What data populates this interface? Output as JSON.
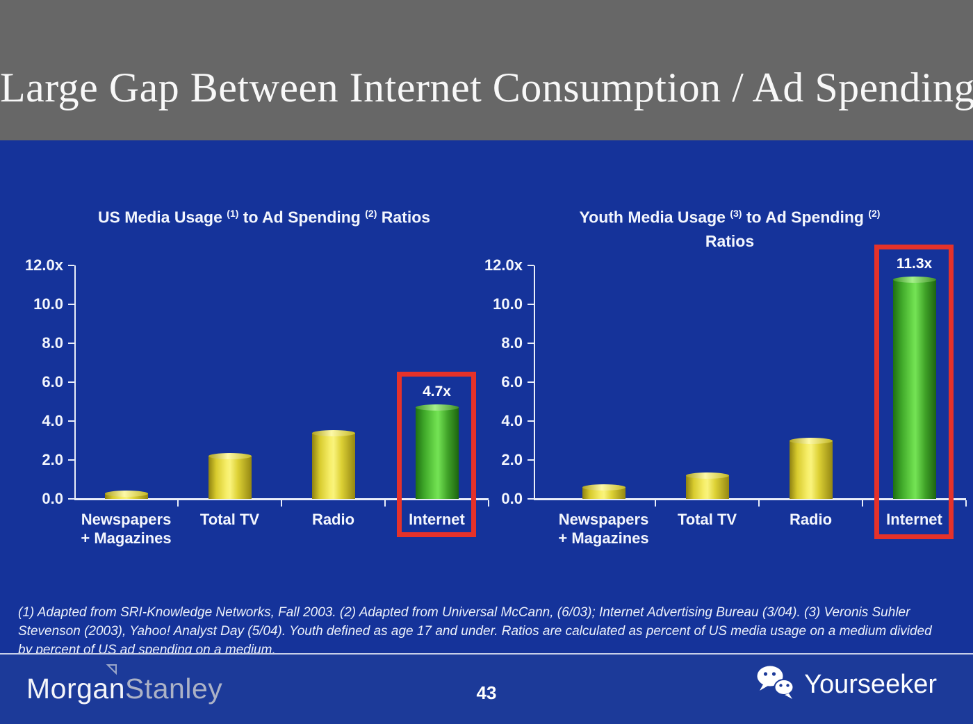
{
  "slide": {
    "title": "Large Gap Between Internet Consumption / Ad Spending",
    "page_number": "43"
  },
  "footnote": {
    "lines": [
      "(1) Adapted from SRI-Knowledge Networks, Fall 2003.  (2) Adapted from Universal McCann, (6/03); Internet Advertising Bureau (3/04). (3) Veronis Suhler",
      "Stevenson (2003), Yahoo! Analyst Day (5/04).  Youth defined as age 17 and under.  Ratios are calculated as percent of US media usage on a medium divided",
      "by percent of US ad spending on a medium."
    ]
  },
  "footer": {
    "brand": {
      "part1": "Morgan",
      "part2": "Stanley",
      "icon": "morgan-stanley-triangle-icon"
    },
    "watermark": {
      "label": "Yourseeker",
      "icon": "wechat-icon"
    }
  },
  "colors": {
    "header_gray": "#676767",
    "slide_blue": "#15339A",
    "footer_blue": "#1C3A99",
    "bar_yellow": "#E8DC3A",
    "bar_green": "#5ACC3C",
    "highlight_red": "#E5322A",
    "axis_white": "#E9EEF9",
    "text_white": "#F3F6FD"
  },
  "chart_data": [
    {
      "type": "bar",
      "title": "US Media Usage (1) to Ad Spending (2) Ratios",
      "title_segments": [
        {
          "text": "US Media Usage "
        },
        {
          "sup": "(1)"
        },
        {
          "text": " to Ad Spending "
        },
        {
          "sup": "(2)"
        },
        {
          "text": " Ratios"
        }
      ],
      "categories": [
        "Newspapers + Magazines",
        "Total TV",
        "Radio",
        "Internet"
      ],
      "category_label_lines": [
        [
          "Newspapers",
          "+ Magazines"
        ],
        [
          "Total TV"
        ],
        [
          "Radio"
        ],
        [
          "Internet"
        ]
      ],
      "values": [
        0.3,
        2.2,
        3.4,
        4.7
      ],
      "bar_colors": [
        "yellow",
        "yellow",
        "yellow",
        "green"
      ],
      "annotations": [
        null,
        null,
        null,
        "4.7x"
      ],
      "highlight_index": 3,
      "ylim": [
        0,
        12
      ],
      "y_tick_labels": [
        "12.0x",
        "10.0",
        "8.0",
        "6.0",
        "4.0",
        "2.0",
        "0.0"
      ],
      "xlabel": "",
      "ylabel": "",
      "grid": false,
      "legend": null
    },
    {
      "type": "bar",
      "title": "Youth Media Usage (3) to Ad Spending (2) Ratios",
      "title_segments": [
        {
          "text": "Youth Media Usage "
        },
        {
          "sup": "(3)"
        },
        {
          "text": " to Ad Spending "
        },
        {
          "sup": "(2)"
        },
        {
          "break": true
        },
        {
          "text": "Ratios"
        }
      ],
      "categories": [
        "Newspapers + Magazines",
        "Total TV",
        "Radio",
        "Internet"
      ],
      "category_label_lines": [
        [
          "Newspapers",
          "+ Magazines"
        ],
        [
          "Total TV"
        ],
        [
          "Radio"
        ],
        [
          "Internet"
        ]
      ],
      "values": [
        0.6,
        1.2,
        3.0,
        11.3
      ],
      "bar_colors": [
        "yellow",
        "yellow",
        "yellow",
        "green"
      ],
      "annotations": [
        null,
        null,
        null,
        "11.3x"
      ],
      "highlight_index": 3,
      "ylim": [
        0,
        12
      ],
      "y_tick_labels": [
        "12.0x",
        "10.0",
        "8.0",
        "6.0",
        "4.0",
        "2.0",
        "0.0"
      ],
      "xlabel": "",
      "ylabel": "",
      "grid": false,
      "legend": null
    }
  ]
}
